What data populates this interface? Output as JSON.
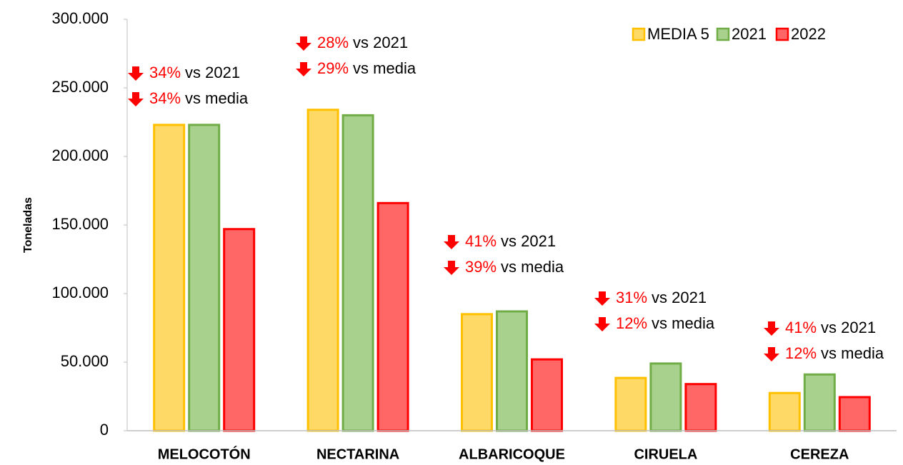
{
  "chart_data": {
    "type": "bar",
    "y_label": "Toneladas",
    "categories": [
      "MELOCOTÓN",
      "NECTARINA",
      "ALBARICOQUE",
      "CIRUELA",
      "CEREZA"
    ],
    "series": [
      {
        "name": "MEDIA 5",
        "color": "#ffd966",
        "edge": "#ffc000",
        "values": [
          223000,
          234000,
          85000,
          38500,
          27500
        ]
      },
      {
        "name": "2021",
        "color": "#a9d18e",
        "edge": "#70ad47",
        "values": [
          223000,
          230000,
          87000,
          49000,
          41000
        ]
      },
      {
        "name": "2022",
        "color": "#ff6666",
        "edge": "#ff0000",
        "values": [
          147000,
          166000,
          52000,
          34000,
          24500
        ]
      }
    ],
    "ylim": [
      0,
      300000
    ],
    "yticks": [
      0,
      {
        "value": 50000,
        "label": "50.000"
      },
      {
        "value": 100000,
        "label": "100.000"
      },
      {
        "value": 150000,
        "label": "150.000"
      },
      {
        "value": 200000,
        "label": "200.000"
      },
      {
        "value": 250000,
        "label": "250.000"
      },
      {
        "value": 300000,
        "label": "300.000"
      }
    ],
    "legend": "top-right",
    "annotations": [
      [
        {
          "pct": "34%",
          "text": "vs 2021"
        },
        {
          "pct": "34%",
          "text": "vs media"
        }
      ],
      [
        {
          "pct": "28%",
          "text": "vs 2021"
        },
        {
          "pct": "29%",
          "text": "vs media"
        }
      ],
      [
        {
          "pct": "41%",
          "text": "vs 2021"
        },
        {
          "pct": "39%",
          "text": "vs media"
        }
      ],
      [
        {
          "pct": "31%",
          "text": "vs 2021"
        },
        {
          "pct": "12%",
          "text": "vs media"
        }
      ],
      [
        {
          "pct": "41%",
          "text": "vs 2021"
        },
        {
          "pct": "12%",
          "text": "vs media"
        }
      ]
    ]
  }
}
